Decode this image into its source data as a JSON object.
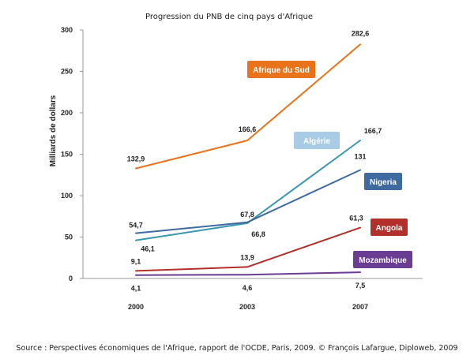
{
  "chart_data": {
    "type": "line",
    "title": "Progression du PNB de cinq pays d'Afrique",
    "xlabel": "",
    "ylabel": "Milliards de dollars",
    "x": [
      "2000",
      "2003",
      "2007"
    ],
    "ylim": [
      0,
      300
    ],
    "yticks": [
      "0",
      "50",
      "100",
      "150",
      "200",
      "250",
      "300"
    ],
    "grid": false,
    "series": [
      {
        "name": "Afrique du Sud",
        "values": [
          132.9,
          166.6,
          282.6
        ],
        "labels": [
          "132,9",
          "166,6",
          "282,6"
        ],
        "color": "#E8731A",
        "legend_text_color": "#ffffff"
      },
      {
        "name": "Algérie",
        "values": [
          46.1,
          66.8,
          166.7
        ],
        "labels": [
          "46,1",
          "66,8",
          "166,7"
        ],
        "color": "#3A96AE",
        "legend_bg": "#A9CCE6",
        "legend_text_color": "#ffffff"
      },
      {
        "name": "Nigeria",
        "values": [
          54.7,
          67.8,
          131
        ],
        "labels": [
          "54,7",
          "67,8",
          "131"
        ],
        "color": "#3E6AA0",
        "legend_text_color": "#ffffff"
      },
      {
        "name": "Angola",
        "values": [
          9.1,
          13.9,
          61.3
        ],
        "labels": [
          "9,1",
          "13,9",
          "61,3"
        ],
        "color": "#B22F2A",
        "legend_text_color": "#ffffff"
      },
      {
        "name": "Mozambique",
        "values": [
          4.1,
          4.6,
          7.5
        ],
        "labels": [
          "4,1",
          "4,6",
          "7,5"
        ],
        "color": "#6A3C92",
        "legend_text_color": "#ffffff"
      }
    ]
  },
  "source": "Source : Perspectives économiques de l'Afrique, rapport de l'OCDE, Paris, 2009. © François Lafargue, Diploweb, 2009"
}
